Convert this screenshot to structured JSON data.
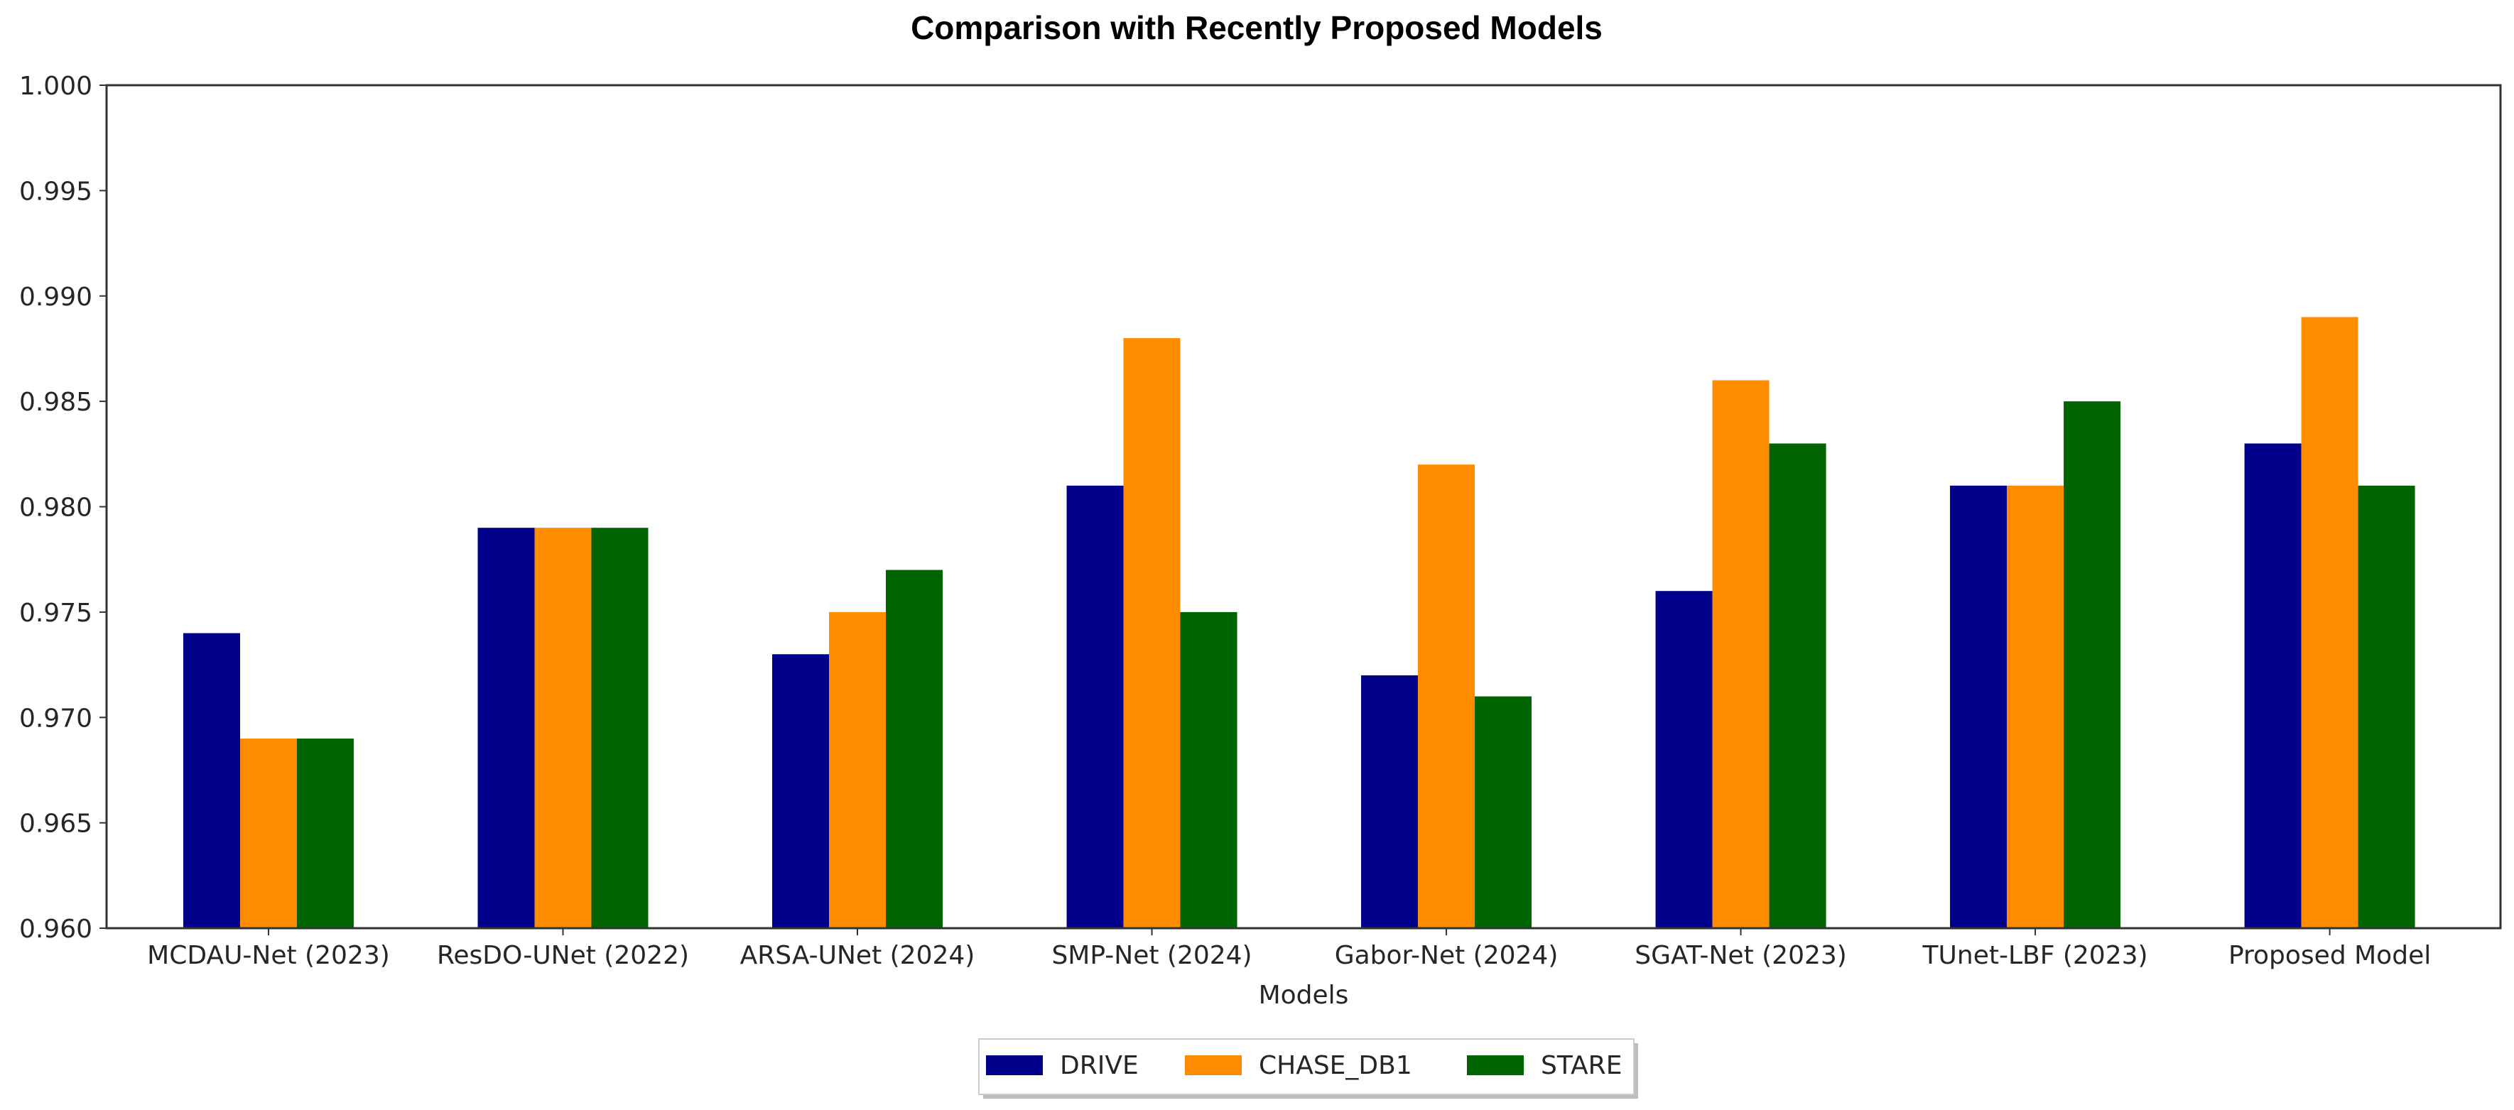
{
  "chart_data": {
    "type": "bar",
    "title": "Comparison with Recently Proposed Models",
    "xlabel": "Models",
    "ylabel": "",
    "ylim": [
      0.96,
      1.0
    ],
    "yticks": [
      "0.960",
      "0.965",
      "0.970",
      "0.975",
      "0.980",
      "0.985",
      "0.990",
      "0.995",
      "1.000"
    ],
    "categories": [
      "MCDAU-Net (2023)",
      "ResDO-UNet (2022)",
      "ARSA-UNet (2024)",
      "SMP-Net (2024)",
      "Gabor-Net (2024)",
      "SGAT-Net (2023)",
      "TUnet-LBF (2023)",
      "Proposed Model"
    ],
    "series": [
      {
        "name": "DRIVE",
        "color": "#00008b",
        "values": [
          0.974,
          0.979,
          0.973,
          0.981,
          0.972,
          0.976,
          0.981,
          0.983
        ]
      },
      {
        "name": "CHASE_DB1",
        "color": "#ff8c00",
        "values": [
          0.969,
          0.979,
          0.975,
          0.988,
          0.982,
          0.986,
          0.981,
          0.989
        ]
      },
      {
        "name": "STARE",
        "color": "#006400",
        "values": [
          0.969,
          0.979,
          0.977,
          0.975,
          0.971,
          0.983,
          0.985,
          0.981
        ]
      }
    ],
    "grid": false,
    "legend_position": "bottom-center"
  }
}
